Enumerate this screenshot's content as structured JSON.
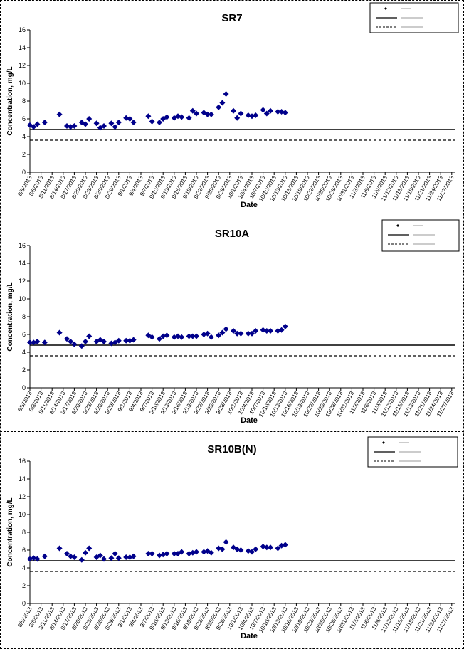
{
  "charts": {
    "x_dates": [
      "8/5/2013",
      "8/8/2013",
      "8/11/2013",
      "8/14/2013",
      "8/17/2013",
      "8/20/2013",
      "8/23/2013",
      "8/26/2013",
      "8/29/2013",
      "9/1/2013",
      "9/4/2013",
      "9/7/2013",
      "9/10/2013",
      "9/13/2013",
      "9/16/2013",
      "9/19/2013",
      "9/22/2013",
      "9/25/2013",
      "9/28/2013",
      "10/1/2013",
      "10/4/2013",
      "10/7/2013",
      "10/10/2013",
      "10/13/2013",
      "10/16/2013",
      "10/19/2013",
      "10/22/2013",
      "10/25/2013",
      "10/28/2013",
      "10/31/2013",
      "11/3/2013",
      "11/6/2013",
      "11/9/2013",
      "11/12/2013",
      "11/15/2013",
      "11/18/2013",
      "11/21/2013",
      "11/24/2013",
      "11/27/2013"
    ],
    "y_ticks": [
      "0",
      "2",
      "4",
      "6",
      "8",
      "10",
      "12",
      "14",
      "16"
    ]
  },
  "chart_data": [
    {
      "type": "scatter",
      "title": "SR7",
      "xlabel": "Date",
      "ylabel": "Concentration, mg/L",
      "ylim": [
        0,
        16
      ],
      "xlim": [
        "8/5/2013",
        "11/28/2013"
      ],
      "grid": false,
      "legend": "top-right",
      "legend_entries": [
        "",
        "",
        ""
      ],
      "series": [
        {
          "marker": "diamond",
          "color": "#00008B",
          "points": [
            [
              "8/5/2013",
              5.3
            ],
            [
              "8/6/2013",
              5.1
            ],
            [
              "8/7/2013",
              5.4
            ],
            [
              "8/9/2013",
              5.6
            ],
            [
              "8/13/2013",
              6.5
            ],
            [
              "8/15/2013",
              5.2
            ],
            [
              "8/16/2013",
              5.1
            ],
            [
              "8/17/2013",
              5.2
            ],
            [
              "8/19/2013",
              5.6
            ],
            [
              "8/20/2013",
              5.4
            ],
            [
              "8/21/2013",
              6.0
            ],
            [
              "8/23/2013",
              5.5
            ],
            [
              "8/24/2013",
              5.0
            ],
            [
              "8/25/2013",
              5.2
            ],
            [
              "8/27/2013",
              5.5
            ],
            [
              "8/28/2013",
              5.1
            ],
            [
              "8/29/2013",
              5.6
            ],
            [
              "8/31/2013",
              6.1
            ],
            [
              "9/1/2013",
              6.0
            ],
            [
              "9/2/2013",
              5.6
            ],
            [
              "9/6/2013",
              6.3
            ],
            [
              "9/7/2013",
              5.7
            ],
            [
              "9/9/2013",
              5.6
            ],
            [
              "9/10/2013",
              6.0
            ],
            [
              "9/11/2013",
              6.2
            ],
            [
              "9/13/2013",
              6.1
            ],
            [
              "9/14/2013",
              6.3
            ],
            [
              "9/15/2013",
              6.2
            ],
            [
              "9/17/2013",
              6.1
            ],
            [
              "9/18/2013",
              6.9
            ],
            [
              "9/19/2013",
              6.6
            ],
            [
              "9/21/2013",
              6.7
            ],
            [
              "9/22/2013",
              6.5
            ],
            [
              "9/23/2013",
              6.5
            ],
            [
              "9/25/2013",
              7.3
            ],
            [
              "9/26/2013",
              7.8
            ],
            [
              "9/27/2013",
              8.8
            ],
            [
              "9/29/2013",
              6.9
            ],
            [
              "9/30/2013",
              6.1
            ],
            [
              "10/1/2013",
              6.6
            ],
            [
              "10/3/2013",
              6.4
            ],
            [
              "10/4/2013",
              6.3
            ],
            [
              "10/5/2013",
              6.4
            ],
            [
              "10/7/2013",
              7.0
            ],
            [
              "10/8/2013",
              6.6
            ],
            [
              "10/9/2013",
              6.9
            ],
            [
              "10/11/2013",
              6.8
            ],
            [
              "10/12/2013",
              6.8
            ],
            [
              "10/13/2013",
              6.7
            ]
          ]
        }
      ],
      "reference_lines": [
        {
          "style": "solid",
          "value": 4.8
        },
        {
          "style": "dashed",
          "value": 3.6
        }
      ]
    },
    {
      "type": "scatter",
      "title": "SR10A",
      "xlabel": "Date",
      "ylabel": "Concentration, mg/L",
      "ylim": [
        0,
        16
      ],
      "xlim": [
        "8/5/2013",
        "11/28/2013"
      ],
      "grid": false,
      "legend": "top-right",
      "legend_entries": [
        "",
        "",
        ""
      ],
      "series": [
        {
          "marker": "diamond",
          "color": "#00008B",
          "points": [
            [
              "8/5/2013",
              5.1
            ],
            [
              "8/6/2013",
              5.1
            ],
            [
              "8/7/2013",
              5.2
            ],
            [
              "8/9/2013",
              5.1
            ],
            [
              "8/13/2013",
              6.2
            ],
            [
              "8/15/2013",
              5.5
            ],
            [
              "8/16/2013",
              5.2
            ],
            [
              "8/17/2013",
              4.9
            ],
            [
              "8/19/2013",
              4.7
            ],
            [
              "8/20/2013",
              5.2
            ],
            [
              "8/21/2013",
              5.8
            ],
            [
              "8/23/2013",
              5.2
            ],
            [
              "8/24/2013",
              5.4
            ],
            [
              "8/25/2013",
              5.2
            ],
            [
              "8/27/2013",
              5.0
            ],
            [
              "8/28/2013",
              5.1
            ],
            [
              "8/29/2013",
              5.3
            ],
            [
              "8/31/2013",
              5.3
            ],
            [
              "9/1/2013",
              5.3
            ],
            [
              "9/2/2013",
              5.4
            ],
            [
              "9/6/2013",
              5.9
            ],
            [
              "9/7/2013",
              5.7
            ],
            [
              "9/9/2013",
              5.5
            ],
            [
              "9/10/2013",
              5.8
            ],
            [
              "9/11/2013",
              5.9
            ],
            [
              "9/13/2013",
              5.7
            ],
            [
              "9/14/2013",
              5.8
            ],
            [
              "9/15/2013",
              5.7
            ],
            [
              "9/17/2013",
              5.8
            ],
            [
              "9/18/2013",
              5.8
            ],
            [
              "9/19/2013",
              5.8
            ],
            [
              "9/21/2013",
              6.0
            ],
            [
              "9/22/2013",
              6.1
            ],
            [
              "9/23/2013",
              5.7
            ],
            [
              "9/25/2013",
              5.9
            ],
            [
              "9/26/2013",
              6.2
            ],
            [
              "9/27/2013",
              6.6
            ],
            [
              "9/29/2013",
              6.4
            ],
            [
              "9/30/2013",
              6.1
            ],
            [
              "10/1/2013",
              6.1
            ],
            [
              "10/3/2013",
              6.1
            ],
            [
              "10/4/2013",
              6.1
            ],
            [
              "10/5/2013",
              6.4
            ],
            [
              "10/7/2013",
              6.5
            ],
            [
              "10/8/2013",
              6.4
            ],
            [
              "10/9/2013",
              6.4
            ],
            [
              "10/11/2013",
              6.4
            ],
            [
              "10/12/2013",
              6.5
            ],
            [
              "10/13/2013",
              6.9
            ]
          ]
        }
      ],
      "reference_lines": [
        {
          "style": "solid",
          "value": 4.8
        },
        {
          "style": "dashed",
          "value": 3.6
        }
      ]
    },
    {
      "type": "scatter",
      "title": "SR10B(N)",
      "xlabel": "Date",
      "ylabel": "Concentration, mg/L",
      "ylim": [
        0,
        16
      ],
      "xlim": [
        "8/5/2013",
        "11/28/2013"
      ],
      "grid": false,
      "legend": "top-right",
      "legend_entries": [
        "",
        "",
        ""
      ],
      "series": [
        {
          "marker": "diamond",
          "color": "#00008B",
          "points": [
            [
              "8/5/2013",
              5.0
            ],
            [
              "8/6/2013",
              5.1
            ],
            [
              "8/7/2013",
              5.0
            ],
            [
              "8/9/2013",
              5.3
            ],
            [
              "8/13/2013",
              6.2
            ],
            [
              "8/15/2013",
              5.6
            ],
            [
              "8/16/2013",
              5.3
            ],
            [
              "8/17/2013",
              5.2
            ],
            [
              "8/19/2013",
              4.9
            ],
            [
              "8/20/2013",
              5.7
            ],
            [
              "8/21/2013",
              6.2
            ],
            [
              "8/23/2013",
              5.2
            ],
            [
              "8/24/2013",
              5.4
            ],
            [
              "8/25/2013",
              5.0
            ],
            [
              "8/27/2013",
              5.1
            ],
            [
              "8/28/2013",
              5.6
            ],
            [
              "8/29/2013",
              5.1
            ],
            [
              "8/31/2013",
              5.2
            ],
            [
              "9/1/2013",
              5.2
            ],
            [
              "9/2/2013",
              5.3
            ],
            [
              "9/6/2013",
              5.6
            ],
            [
              "9/7/2013",
              5.6
            ],
            [
              "9/9/2013",
              5.4
            ],
            [
              "9/10/2013",
              5.5
            ],
            [
              "9/11/2013",
              5.6
            ],
            [
              "9/13/2013",
              5.6
            ],
            [
              "9/14/2013",
              5.6
            ],
            [
              "9/15/2013",
              5.8
            ],
            [
              "9/17/2013",
              5.6
            ],
            [
              "9/18/2013",
              5.7
            ],
            [
              "9/19/2013",
              5.8
            ],
            [
              "9/21/2013",
              5.8
            ],
            [
              "9/22/2013",
              5.9
            ],
            [
              "9/23/2013",
              5.7
            ],
            [
              "9/25/2013",
              6.2
            ],
            [
              "9/26/2013",
              6.1
            ],
            [
              "9/27/2013",
              6.9
            ],
            [
              "9/29/2013",
              6.3
            ],
            [
              "9/30/2013",
              6.1
            ],
            [
              "10/1/2013",
              6.0
            ],
            [
              "10/3/2013",
              5.9
            ],
            [
              "10/4/2013",
              5.8
            ],
            [
              "10/5/2013",
              6.1
            ],
            [
              "10/7/2013",
              6.4
            ],
            [
              "10/8/2013",
              6.3
            ],
            [
              "10/9/2013",
              6.3
            ],
            [
              "10/11/2013",
              6.2
            ],
            [
              "10/12/2013",
              6.5
            ],
            [
              "10/13/2013",
              6.6
            ]
          ]
        }
      ],
      "reference_lines": [
        {
          "style": "solid",
          "value": 4.8
        },
        {
          "style": "dashed",
          "value": 3.6
        }
      ]
    }
  ]
}
